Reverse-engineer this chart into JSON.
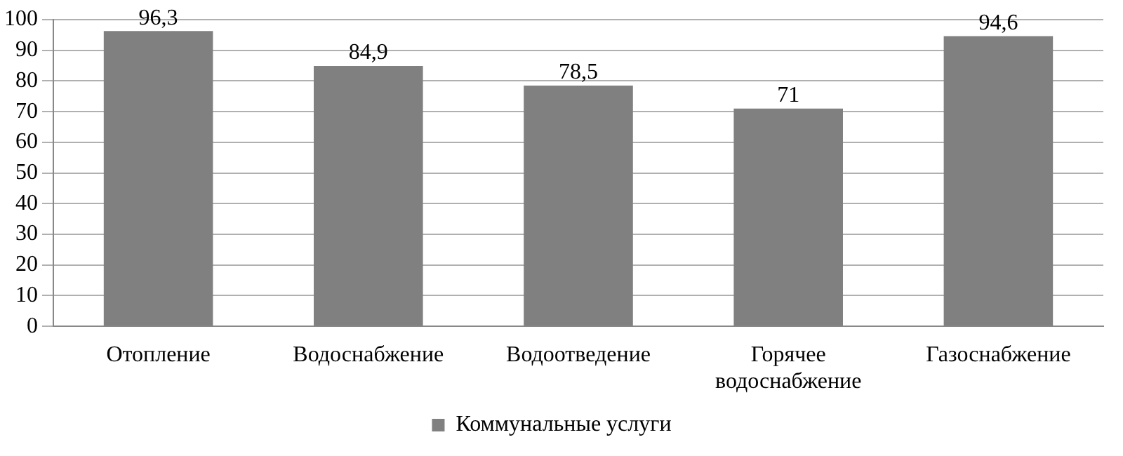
{
  "chart_data": {
    "type": "bar",
    "categories": [
      "Отопление",
      "Водоснабжение",
      "Водоотведение",
      "Горячее водоснабжение",
      "Газоснабжение"
    ],
    "series": [
      {
        "name": "Коммунальные услуги",
        "color": "#808080",
        "values": [
          96.3,
          84.9,
          78.5,
          71,
          94.6
        ],
        "value_labels": [
          "96,3",
          "84,9",
          "78,5",
          "71",
          "94,6"
        ]
      }
    ],
    "ylim": [
      0,
      100
    ],
    "yticks": [
      0,
      10,
      20,
      30,
      40,
      50,
      60,
      70,
      80,
      90,
      100
    ],
    "grid": "y",
    "legend": "bottom"
  }
}
